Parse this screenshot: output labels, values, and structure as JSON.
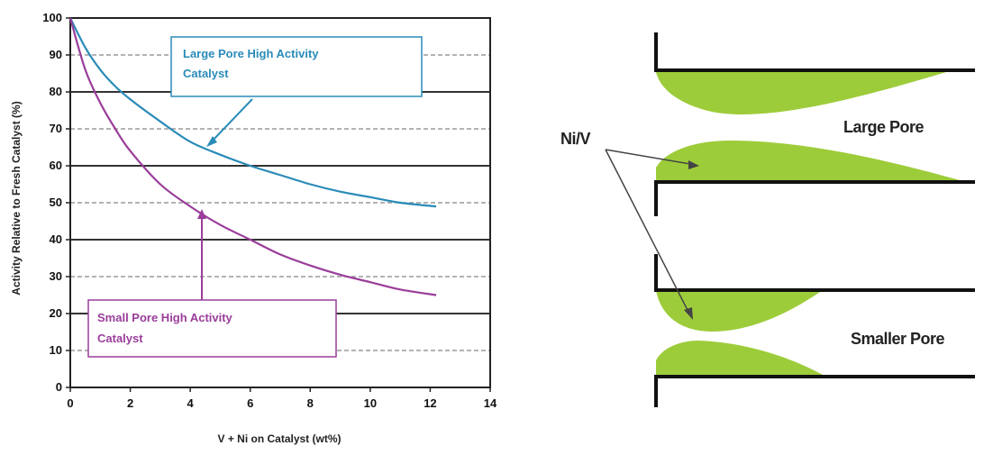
{
  "chart_data": {
    "type": "line",
    "title": "",
    "xlabel": "V + Ni on Catalyst (wt%)",
    "ylabel": "Activity Relative to Fresh Catalyst (%)",
    "xlim": [
      0,
      14
    ],
    "ylim": [
      0,
      100
    ],
    "x_ticks": [
      0,
      2,
      4,
      6,
      8,
      10,
      12,
      14
    ],
    "y_ticks": [
      0,
      10,
      20,
      30,
      40,
      50,
      60,
      70,
      80,
      90,
      100
    ],
    "grid": true,
    "series": [
      {
        "name": "Large Pore High Activity Catalyst",
        "color": "#2a8bb8",
        "x": [
          0,
          0.5,
          1,
          1.5,
          2,
          3,
          4,
          5,
          6,
          7,
          8,
          9,
          10,
          11,
          12.2
        ],
        "y": [
          100,
          92,
          86,
          81.5,
          78,
          72,
          66.5,
          63,
          60,
          57.5,
          55,
          53,
          51.5,
          50,
          49
        ]
      },
      {
        "name": "Small Pore High Activity Catalyst",
        "color": "#9a3d9a",
        "x": [
          0,
          0.5,
          1,
          1.5,
          2,
          3,
          4,
          5,
          6,
          7,
          8,
          9,
          10,
          11,
          12.2
        ],
        "y": [
          100,
          86,
          77,
          70,
          64,
          55,
          49,
          44,
          40,
          36,
          33,
          30.5,
          28.5,
          26.5,
          25
        ]
      }
    ]
  },
  "diagram": {
    "nivi_label": "Ni/V",
    "large_pore_label": "Large Pore",
    "smaller_pore_label": "Smaller Pore",
    "deposit_color": "#9dcc3a"
  }
}
